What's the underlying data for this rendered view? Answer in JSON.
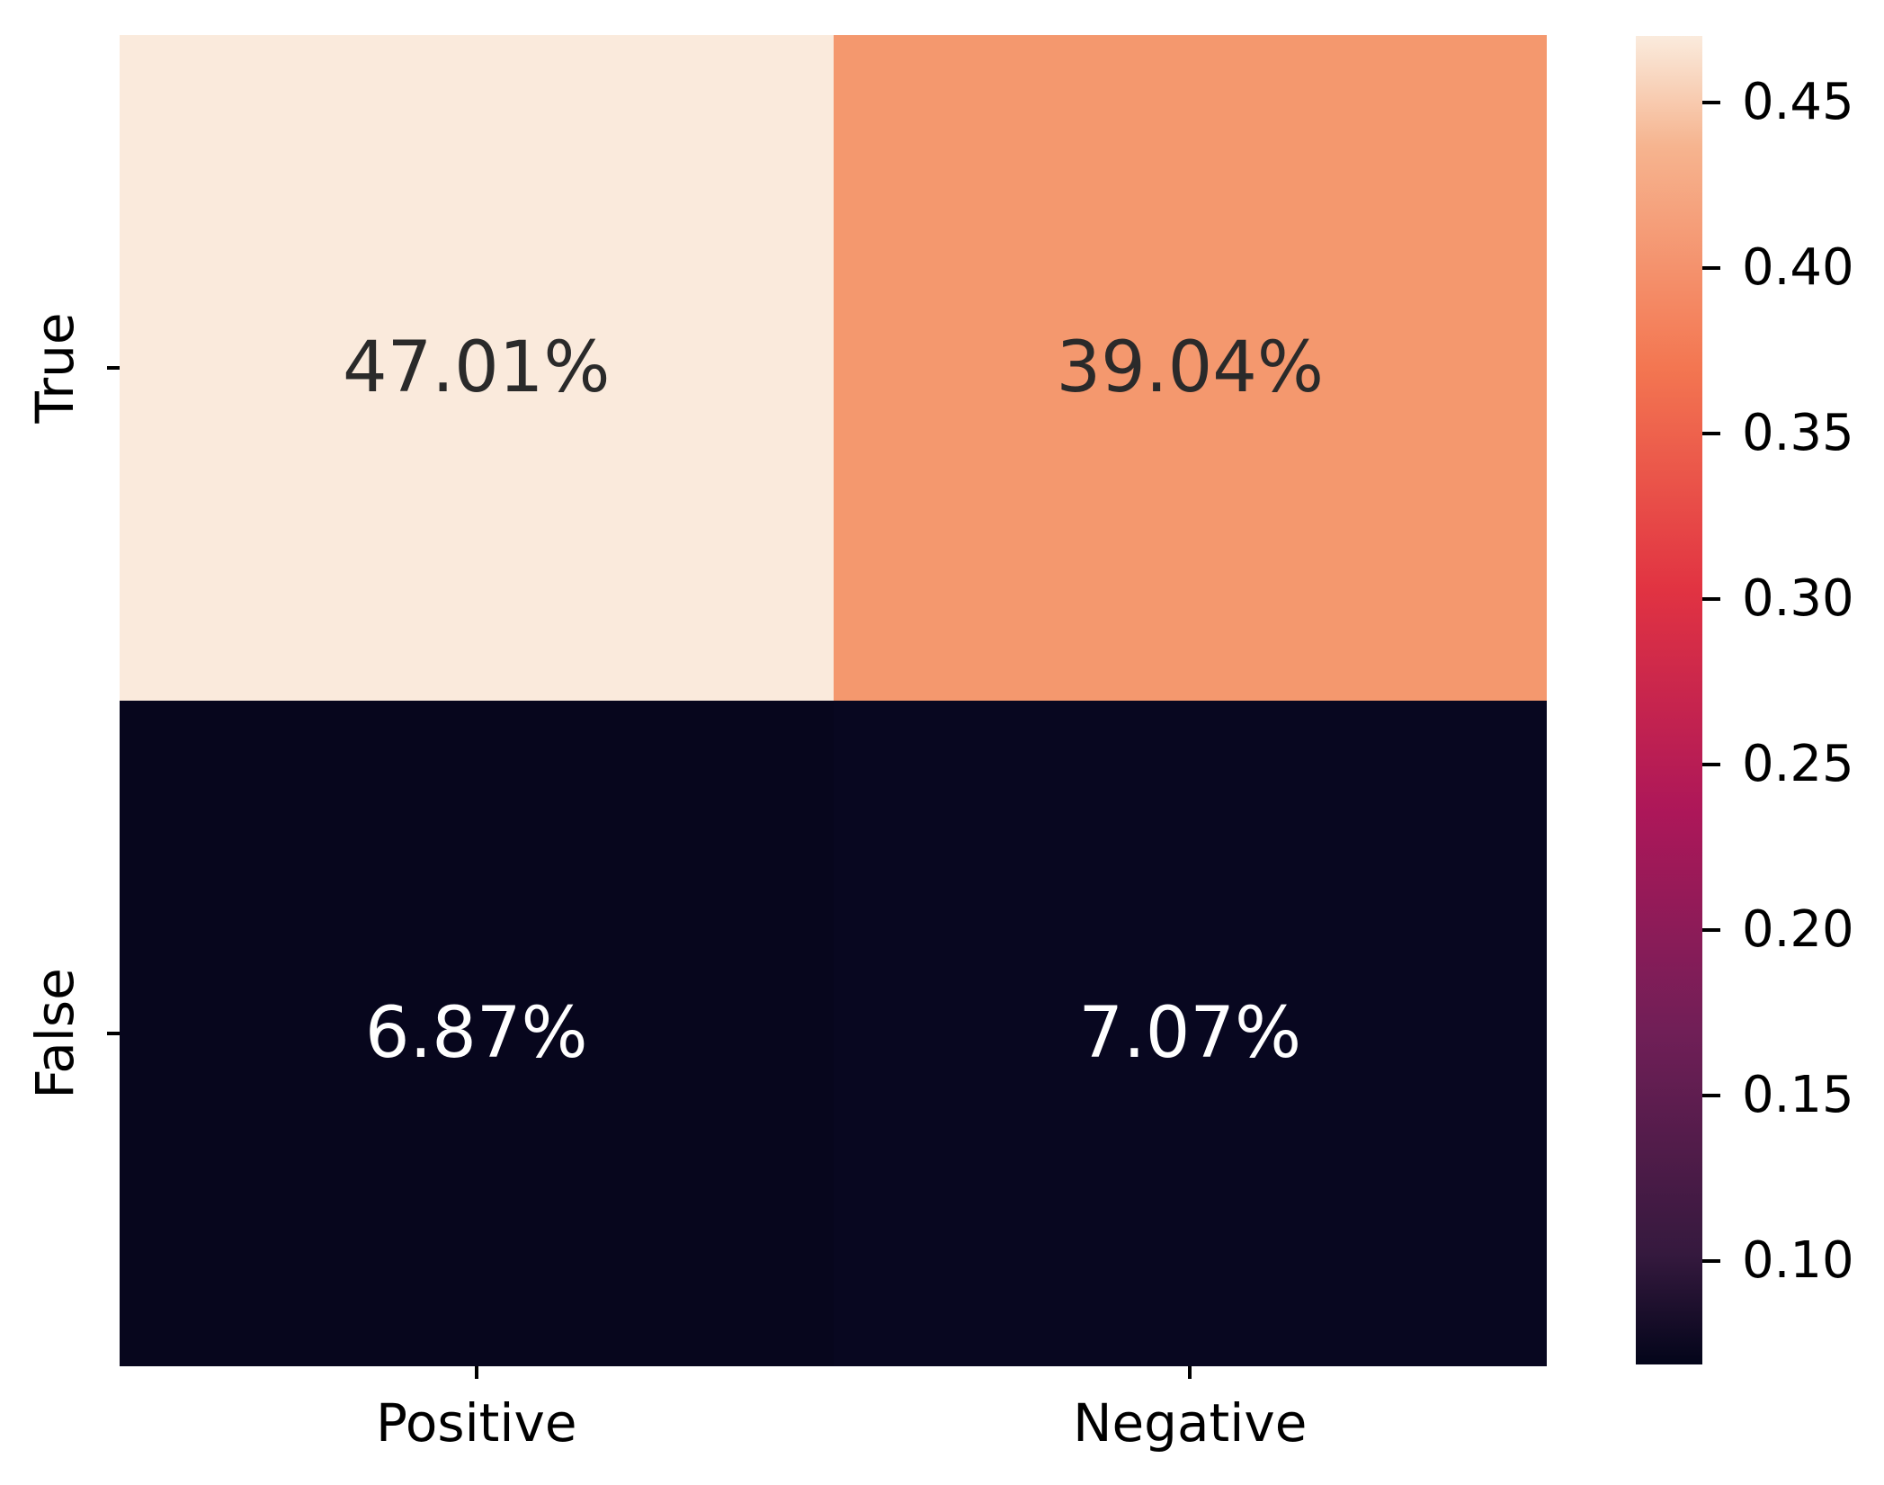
{
  "figure": {
    "background": "#FFFFFF"
  },
  "chart_data": {
    "type": "heatmap",
    "title": "",
    "xlabel": "",
    "ylabel": "",
    "x_categories": [
      "Positive",
      "Negative"
    ],
    "y_categories": [
      "True",
      "False"
    ],
    "values": [
      [
        0.4701,
        0.3904
      ],
      [
        0.0687,
        0.0707
      ]
    ],
    "cell_labels": [
      [
        "47.01%",
        "39.04%"
      ],
      [
        "6.87%",
        "7.07%"
      ]
    ],
    "cell_colors": [
      [
        "#FAEADC",
        "#F4986E"
      ],
      [
        "#07061D",
        "#080720"
      ]
    ],
    "cell_text_colors": [
      [
        "#2A2A2A",
        "#2A2A2A"
      ],
      [
        "#FFFFFF",
        "#FFFFFF"
      ]
    ],
    "colormap": "rocket",
    "vmin": 0.0687,
    "vmax": 0.4701,
    "colorbar_position": "right",
    "colorbar_ticks": [
      0.45,
      0.4,
      0.35,
      0.3,
      0.25,
      0.2,
      0.15,
      0.1
    ],
    "colorbar_tick_labels": [
      "0.45",
      "0.40",
      "0.35",
      "0.30",
      "0.25",
      "0.20",
      "0.15",
      "0.10"
    ],
    "colormap_stops": [
      {
        "pos": 0.0,
        "color": "#03051A"
      },
      {
        "pos": 0.083,
        "color": "#35193E"
      },
      {
        "pos": 0.25,
        "color": "#701F57"
      },
      {
        "pos": 0.417,
        "color": "#AD1759"
      },
      {
        "pos": 0.583,
        "color": "#E13342"
      },
      {
        "pos": 0.75,
        "color": "#F37651"
      },
      {
        "pos": 0.917,
        "color": "#F6B48F"
      },
      {
        "pos": 1.0,
        "color": "#FAEBDD"
      }
    ],
    "grid": false,
    "tick_color": "#000000",
    "label_color": "#000000"
  }
}
